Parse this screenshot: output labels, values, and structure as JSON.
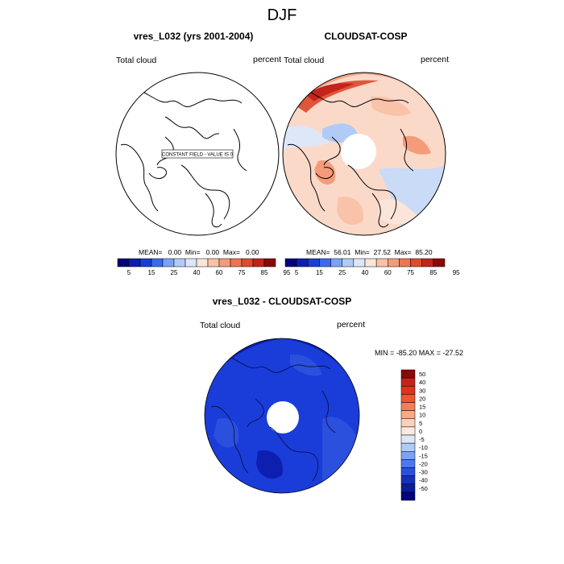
{
  "season": "DJF",
  "panels": {
    "model": {
      "title": "vres_L032 (yrs 2001-2004)",
      "left_label": "Total cloud",
      "right_label": "percent",
      "constant_field_label": "CONSTANT FIELD - VALUE IS 0",
      "stats": "MEAN=   0.00  Min=   0.00  Max=   0.00"
    },
    "obs": {
      "title": "CLOUDSAT-COSP",
      "left_label": "Total cloud",
      "right_label": "percent",
      "stats": "MEAN=  56.01  Min=  27.52  Max=  85.20"
    },
    "diff": {
      "title": "vres_L032 - CLOUDSAT-COSP",
      "left_label": "Total cloud",
      "right_label": "percent",
      "minmax": "MIN = -85.20 MAX = -27.52"
    }
  },
  "colorbar_top": {
    "ticks": [
      "5",
      "15",
      "25",
      "40",
      "60",
      "75",
      "85",
      "95"
    ],
    "colors": [
      "#03037a",
      "#0d1fb0",
      "#1a3cd9",
      "#3a6af0",
      "#7aa2f7",
      "#b0cbf7",
      "#dde7f7",
      "#fbe5da",
      "#f8c3a8",
      "#f49c7a",
      "#ec7652",
      "#e04a2c",
      "#c4231a",
      "#8a0808"
    ]
  },
  "colorbar_diff": {
    "ticks": [
      "50",
      "40",
      "30",
      "20",
      "15",
      "10",
      "5",
      "0",
      "-5",
      "-10",
      "-15",
      "-20",
      "-30",
      "-40",
      "-50"
    ],
    "colors": [
      "#8a0808",
      "#c4231a",
      "#e0321c",
      "#f0562c",
      "#f47f56",
      "#f8a98a",
      "#fbd0bc",
      "#fbe9e0",
      "#dde7f7",
      "#b0cbf7",
      "#7aa2f7",
      "#4a7af0",
      "#2a50dd",
      "#1530b8",
      "#0a1c98",
      "#03037a"
    ]
  }
}
